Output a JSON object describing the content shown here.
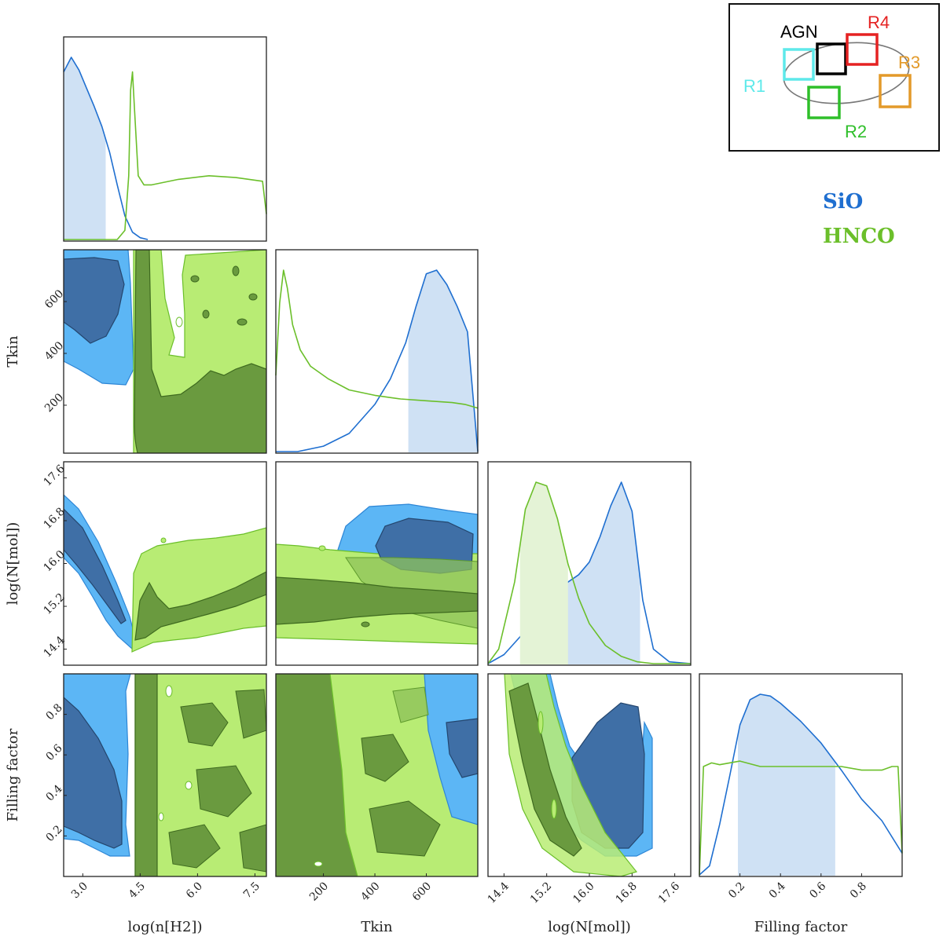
{
  "colors": {
    "sio": "#1f6fd0",
    "sio_fill_inner": "#3f6fa6",
    "sio_fill_outer": "#5cb6f5",
    "sio_hdi": "#cfe1f4",
    "hnco": "#6bbf2a",
    "hnco_fill_inner": "#6a9a3f",
    "hnco_fill_outer": "#b8ec74",
    "hnco_hdi": "#e4f3d6"
  },
  "legend": {
    "sio": "SiO",
    "hnco": "HNCO"
  },
  "inset": {
    "labels": {
      "agn": "AGN",
      "r1": "R1",
      "r2": "R2",
      "r3": "R3",
      "r4": "R4"
    },
    "colors": {
      "agn": "#000000",
      "r1": "#5ee9ea",
      "r2": "#2fbf2a",
      "r3": "#e39a2a",
      "r4": "#e52222"
    }
  },
  "chart_data": {
    "type": "corner",
    "parameters": [
      "log(n[H2])",
      "Tkin",
      "log(N[mol])",
      "Filling factor"
    ],
    "axes": {
      "lognH2": {
        "label": "log(n[H2])",
        "range": [
          2.5,
          7.8
        ],
        "ticks": [
          "3.0",
          "4.5",
          "6.0",
          "7.5"
        ]
      },
      "Tkin": {
        "label": "Tkin",
        "range": [
          15,
          800
        ],
        "ticks": [
          "200",
          "400",
          "600"
        ]
      },
      "logNmol": {
        "label": "log(N[mol])",
        "range": [
          14.1,
          17.9
        ],
        "ticks": [
          "14.4",
          "15.2",
          "16.0",
          "16.8",
          "17.6"
        ]
      },
      "ff": {
        "label": "Filling factor",
        "range": [
          0.0,
          1.0
        ],
        "ticks": [
          "0.2",
          "0.4",
          "0.6",
          "0.8"
        ]
      }
    },
    "series": [
      {
        "name": "SiO",
        "marginals": {
          "lognH2": {
            "x": [
              2.5,
              2.7,
              2.9,
              3.1,
              3.3,
              3.5,
              3.7,
              3.9,
              4.1,
              4.3,
              4.5,
              4.7
            ],
            "y": [
              0.92,
              1.0,
              0.93,
              0.83,
              0.73,
              0.62,
              0.48,
              0.3,
              0.13,
              0.04,
              0.01,
              0.0
            ],
            "hdi": [
              2.5,
              3.6
            ]
          },
          "Tkin": {
            "x": [
              15,
              100,
              200,
              300,
              400,
              460,
              520,
              560,
              600,
              640,
              680,
              720,
              760,
              800
            ],
            "y": [
              0.0,
              0.0,
              0.03,
              0.1,
              0.26,
              0.4,
              0.6,
              0.8,
              0.98,
              1.0,
              0.92,
              0.8,
              0.66,
              0.0
            ],
            "hdi": [
              530,
              800
            ]
          },
          "logNmol": {
            "x": [
              14.1,
              14.4,
              14.8,
              15.2,
              15.5,
              15.8,
              16.0,
              16.2,
              16.4,
              16.6,
              16.8,
              17.0,
              17.2,
              17.5,
              17.9
            ],
            "y": [
              0.0,
              0.05,
              0.18,
              0.34,
              0.43,
              0.49,
              0.56,
              0.7,
              0.87,
              1.0,
              0.84,
              0.35,
              0.08,
              0.01,
              0.0
            ],
            "hdi": [
              15.5,
              16.95
            ]
          },
          "ff": {
            "x": [
              0.0,
              0.05,
              0.1,
              0.15,
              0.2,
              0.25,
              0.3,
              0.35,
              0.4,
              0.5,
              0.6,
              0.7,
              0.8,
              0.9,
              1.0
            ],
            "y": [
              0.0,
              0.05,
              0.28,
              0.55,
              0.83,
              0.97,
              1.0,
              0.99,
              0.95,
              0.85,
              0.73,
              0.58,
              0.42,
              0.3,
              0.12
            ],
            "hdi": [
              0.19,
              0.67
            ]
          }
        }
      },
      {
        "name": "HNCO",
        "marginals": {
          "lognH2": {
            "x": [
              2.5,
              3.9,
              4.1,
              4.2,
              4.25,
              4.3,
              4.35,
              4.45,
              4.6,
              4.8,
              5.5,
              6.3,
              7.0,
              7.7,
              7.8
            ],
            "y": [
              0.0,
              0.0,
              0.05,
              0.35,
              0.82,
              0.92,
              0.72,
              0.35,
              0.3,
              0.3,
              0.33,
              0.35,
              0.34,
              0.32,
              0.14
            ],
            "hdi": []
          },
          "Tkin": {
            "x": [
              15,
              30,
              45,
              60,
              80,
              110,
              150,
              220,
              300,
              400,
              500,
              600,
              700,
              750,
              800
            ],
            "y": [
              0.42,
              0.82,
              1.0,
              0.9,
              0.7,
              0.56,
              0.47,
              0.4,
              0.34,
              0.31,
              0.29,
              0.28,
              0.27,
              0.26,
              0.24
            ],
            "hdi": []
          },
          "logNmol": {
            "x": [
              14.1,
              14.3,
              14.6,
              14.8,
              15.0,
              15.2,
              15.4,
              15.6,
              15.8,
              16.0,
              16.3,
              16.6,
              16.9,
              17.2,
              17.9
            ],
            "y": [
              0.0,
              0.08,
              0.45,
              0.85,
              1.0,
              0.98,
              0.8,
              0.55,
              0.36,
              0.22,
              0.1,
              0.04,
              0.01,
              0.0,
              0.0
            ],
            "hdi": [
              14.7,
              15.6
            ]
          },
          "ff": {
            "x": [
              0.0,
              0.02,
              0.06,
              0.1,
              0.2,
              0.3,
              0.4,
              0.5,
              0.6,
              0.7,
              0.8,
              0.9,
              0.95,
              0.98,
              1.0
            ],
            "y": [
              0.0,
              0.6,
              0.62,
              0.61,
              0.63,
              0.6,
              0.6,
              0.6,
              0.6,
              0.6,
              0.58,
              0.58,
              0.6,
              0.6,
              0.12
            ],
            "hdi": []
          }
        }
      }
    ],
    "grid": false
  }
}
